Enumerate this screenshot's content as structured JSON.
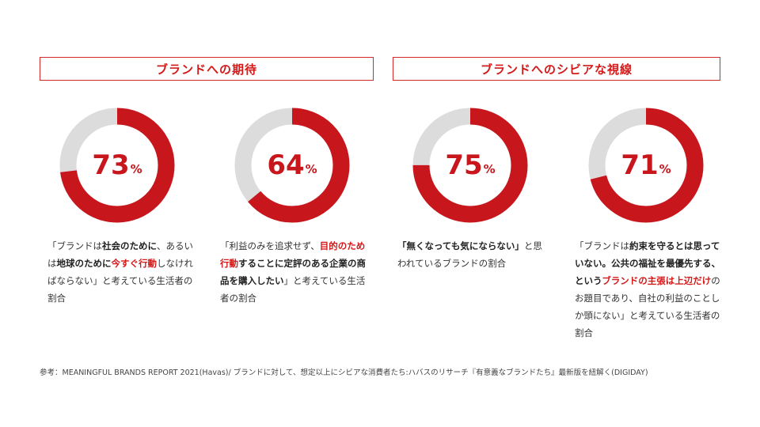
{
  "headers": {
    "left": "ブランドへの期待",
    "right": "ブランドへのシビアな視線"
  },
  "chart_data": [
    {
      "type": "pie",
      "title": "",
      "values": [
        73,
        27
      ],
      "label": "73",
      "unit": "%"
    },
    {
      "type": "pie",
      "title": "",
      "values": [
        64,
        36
      ],
      "label": "64",
      "unit": "%"
    },
    {
      "type": "pie",
      "title": "",
      "values": [
        75,
        25
      ],
      "label": "75",
      "unit": "%"
    },
    {
      "type": "pie",
      "title": "",
      "values": [
        71,
        29
      ],
      "label": "71",
      "unit": "%"
    }
  ],
  "colors": {
    "accent": "#c8161d",
    "remainder": "#dcdcdc",
    "header_border": "#d22a2a"
  },
  "captions": [
    {
      "segments": [
        {
          "t": "「ブランドは",
          "s": "n"
        },
        {
          "t": "社会のために",
          "s": "b"
        },
        {
          "t": "、あるいは",
          "s": "n"
        },
        {
          "t": "地球のために",
          "s": "b"
        },
        {
          "t": "今すぐ行動",
          "s": "r"
        },
        {
          "t": "しなければならない」と考えている生活者の割合",
          "s": "n"
        }
      ]
    },
    {
      "segments": [
        {
          "t": "「利益のみを追求せず、",
          "s": "n"
        },
        {
          "t": "目的のため行動",
          "s": "r"
        },
        {
          "t": "することに",
          "s": "b"
        },
        {
          "t": "定評のある企業の商品を購入したい",
          "s": "b"
        },
        {
          "t": "」と考えている生活者の割合",
          "s": "n"
        }
      ]
    },
    {
      "segments": [
        {
          "t": "「無くなっても気にならない」",
          "s": "b"
        },
        {
          "t": "と思われているブランドの割合",
          "s": "n"
        }
      ]
    },
    {
      "segments": [
        {
          "t": "「ブランドは",
          "s": "n"
        },
        {
          "t": "約束を守るとは思っていない。公共の福祉を最優先する、という",
          "s": "b"
        },
        {
          "t": "ブランドの主張は上辺だけ",
          "s": "r"
        },
        {
          "t": "のお題目であり、自社の利益のことしか頭にない」と考えている生活者の割合",
          "s": "n"
        }
      ]
    }
  ],
  "footnote": "参考：MEANINGFUL BRANDS REPORT 2021(Havas)/ ブランドに対して、想定以上にシビアな消費者たち:ハバスのリサーチ『有意義なブランドたち』最新版を紐解く(DIGIDAY)"
}
